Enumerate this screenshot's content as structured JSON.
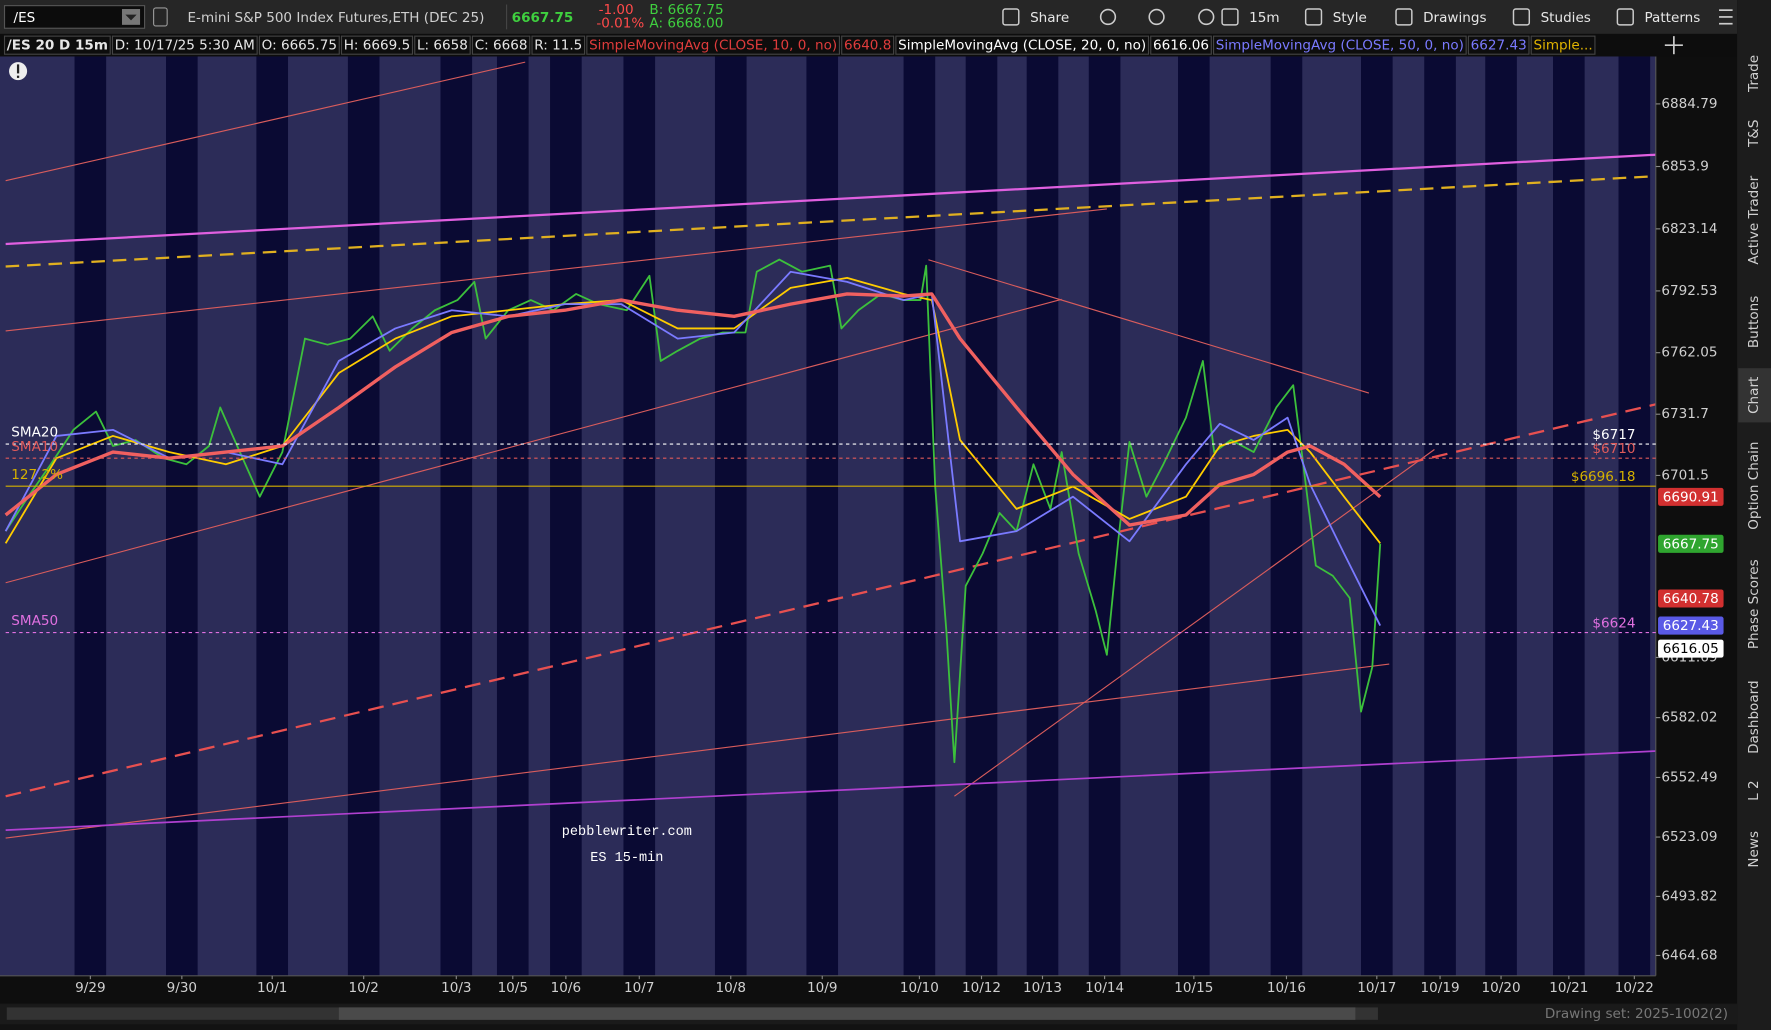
{
  "toolbar": {
    "symbol": "/ES",
    "description": "E-mini S&P 500 Index Futures,ETH (DEC 25)",
    "last": "6667.75",
    "change": "-1.00",
    "change_pct": "-0.01%",
    "bid": "B: 6667.75",
    "ask": "A: 6668.00",
    "buttons": [
      "Share",
      "15m",
      "Style",
      "Drawings",
      "Studies",
      "Patterns"
    ]
  },
  "header": {
    "items": [
      "/ES 20 D 15m",
      "D: 10/17/25 5:30 AM",
      "O: 6665.75",
      "H: 6669.5",
      "L: 6658",
      "C: 6668",
      "R: 11.5"
    ],
    "studies": [
      {
        "name": "SimpleMovingAvg (CLOSE, 10, 0, no)",
        "value": "6640.8",
        "color": "#e03c3c"
      },
      {
        "name": "SimpleMovingAvg (CLOSE, 20, 0, no)",
        "value": "6616.06",
        "color": "#ffffff"
      },
      {
        "name": "SimpleMovingAvg (CLOSE, 50, 0, no)",
        "value": "6627.43",
        "color": "#7a7aff"
      },
      {
        "name": "Simple...",
        "color": "#e0b400"
      }
    ]
  },
  "chart": {
    "ylim": [
      6454.65,
      6908.19
    ],
    "yticks": [
      6884.79,
      6853.9,
      6823.14,
      6792.53,
      6762.05,
      6731.7,
      6701.5,
      6611.69,
      6582.02,
      6552.49,
      6523.09,
      6493.82,
      6464.68
    ],
    "x_labels": [
      "9/29",
      "9/30",
      "10/1",
      "10/2",
      "10/3",
      "10/5",
      "10/6",
      "10/7",
      "10/8",
      "10/9",
      "10/10",
      "10/12",
      "10/13",
      "10/14",
      "10/15",
      "10/16",
      "10/17",
      "10/19",
      "10/20",
      "10/21",
      "10/22"
    ],
    "price_levels": [
      {
        "value": 6717,
        "label": "$6717",
        "tag": "SMA20",
        "color": "#ffffff",
        "dashed": true
      },
      {
        "value": 6710,
        "label": "$6710",
        "tag": "SMA10",
        "color": "#e05a5a",
        "dashed": true
      },
      {
        "value": 6696.18,
        "label": "$6696.18",
        "tag": "127.2%",
        "color": "#d4b000",
        "dashed": false
      },
      {
        "value": 6624,
        "label": "$6624",
        "tag": "SMA50",
        "color": "#e070e0",
        "dashed": true
      }
    ],
    "price_tags": [
      {
        "value": 6690.91,
        "bg": "#d23030",
        "fg": "#ffffff"
      },
      {
        "value": 6667.75,
        "bg": "#2fa52f",
        "fg": "#ffffff"
      },
      {
        "value": 6640.78,
        "bg": "#d23030",
        "fg": "#ffffff"
      },
      {
        "value": 6627.43,
        "bg": "#5a5ae6",
        "fg": "#ffffff"
      },
      {
        "value": 6616.05,
        "bg": "#ffffff",
        "fg": "#000000"
      }
    ],
    "price_path": {
      "color": "#3cc03c",
      "values": [
        6674,
        6691,
        6707,
        6724,
        6733,
        6716,
        6719,
        6710,
        6707,
        6716,
        6735,
        6716,
        6691,
        6713,
        6769,
        6766,
        6769,
        6780,
        6763,
        6774,
        6783,
        6788,
        6797,
        6769,
        6783,
        6788,
        6783,
        6791,
        6786,
        6783,
        6800,
        6758,
        6763,
        6769,
        6772,
        6772,
        6802,
        6808,
        6802,
        6805,
        6774,
        6783,
        6791,
        6788,
        6788,
        6805,
        6696,
        6624,
        6560,
        6647,
        6663,
        6683,
        6674,
        6707,
        6685,
        6713,
        6663,
        6635,
        6613,
        6669,
        6718,
        6691,
        6707,
        6730,
        6758,
        6713,
        6719,
        6713,
        6735,
        6746,
        6702,
        6657,
        6652,
        6641,
        6585,
        6607,
        6667.75
      ]
    },
    "study_lines": [
      {
        "color": "#ffcc00",
        "width": 1.6,
        "values": [
          6668,
          6710,
          6721,
          6713,
          6707,
          6716,
          6752,
          6769,
          6780,
          6783,
          6786,
          6788,
          6774,
          6774,
          6794,
          6799,
          6791,
          6788,
          6719,
          6685,
          6696,
          6680,
          6691,
          6716,
          6721,
          6724,
          6713,
          6691,
          6668
        ]
      },
      {
        "color": "#7a7aff",
        "width": 1.6,
        "values": [
          6674,
          6721,
          6724,
          6710,
          6713,
          6707,
          6758,
          6774,
          6783,
          6780,
          6786,
          6786,
          6769,
          6772,
          6802,
          6797,
          6788,
          6791,
          6669,
          6674,
          6691,
          6669,
          6707,
          6727,
          6719,
          6730,
          6697,
          6663,
          6627.43
        ]
      },
      {
        "color": "#f06060",
        "width": 3,
        "values": [
          6682,
          6702,
          6713,
          6710,
          6713,
          6716,
          6735,
          6755,
          6772,
          6780,
          6783,
          6788,
          6783,
          6780,
          6786,
          6791,
          6790,
          6791,
          6769,
          6735,
          6702,
          6677,
          6682,
          6697,
          6702,
          6713,
          6716,
          6707,
          6690.91
        ]
      }
    ],
    "watermark": [
      "pebblewriter.com",
      "ES 15-min"
    ]
  },
  "sidebar": [
    "Trade",
    "T&S",
    "Active Trader",
    "Buttons",
    "Chart",
    "Option Chain",
    "Phase Scores",
    "Dashboard",
    "L 2",
    "News"
  ],
  "footer": {
    "drawing_set": "Drawing set: 2025-1002(2)"
  }
}
